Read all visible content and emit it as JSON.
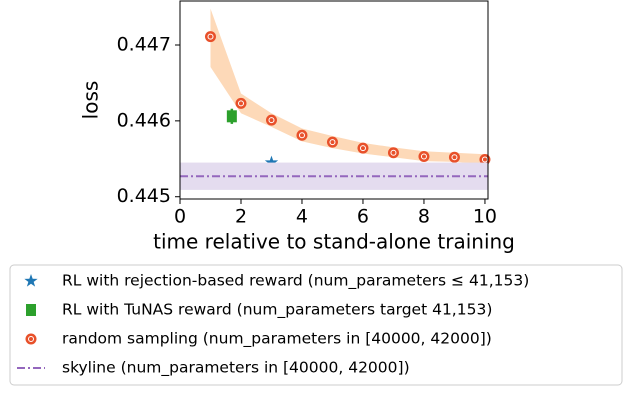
{
  "chart_data": {
    "type": "scatter",
    "x_label": "time relative to stand-alone training",
    "y_label": "loss",
    "xlim": [
      0,
      10.1
    ],
    "ylim": [
      0.44497,
      0.44758
    ],
    "xticks": [
      0,
      2,
      4,
      6,
      8,
      10
    ],
    "yticks": [
      0.445,
      0.446,
      0.447
    ],
    "series": [
      {
        "name": "RL with rejection-based reward (num_parameters ≤ 41,153)",
        "color": "#1f77b4",
        "marker": "star",
        "x": [
          3
        ],
        "values": [
          0.44545
        ],
        "errors": [
          3e-05
        ]
      },
      {
        "name": "RL with TuNAS reward (num_parameters target 41,153)",
        "color": "#2ca02c",
        "marker": "square",
        "x": [
          1.7
        ],
        "values": [
          0.44606
        ],
        "errors": [
          0.0001
        ]
      },
      {
        "name": "random sampling (num_parameters in [40000, 42000])",
        "color": "#e8502a",
        "band_color": "#fdd9b8",
        "marker": "circle",
        "x": [
          1,
          2,
          3,
          4,
          5,
          6,
          7,
          8,
          9,
          10
        ],
        "values": [
          0.44711,
          0.44623,
          0.44601,
          0.44581,
          0.44572,
          0.44564,
          0.44558,
          0.44553,
          0.44552,
          0.44549
        ],
        "band_upper": [
          0.44748,
          0.44636,
          0.4461,
          0.4459,
          0.4458,
          0.44571,
          0.44565,
          0.4456,
          0.44558,
          0.44556
        ],
        "band_lower": [
          0.44671,
          0.4461,
          0.44592,
          0.44573,
          0.44564,
          0.44557,
          0.44552,
          0.44547,
          0.44546,
          0.44543
        ]
      },
      {
        "name": "skyline (num_parameters in [40000, 42000])",
        "color": "#9467bd",
        "band_color": "#e4dcef",
        "marker": "hline",
        "values": [
          0.44527
        ],
        "band_lower": [
          0.44509
        ],
        "band_upper": [
          0.44545
        ]
      }
    ]
  }
}
